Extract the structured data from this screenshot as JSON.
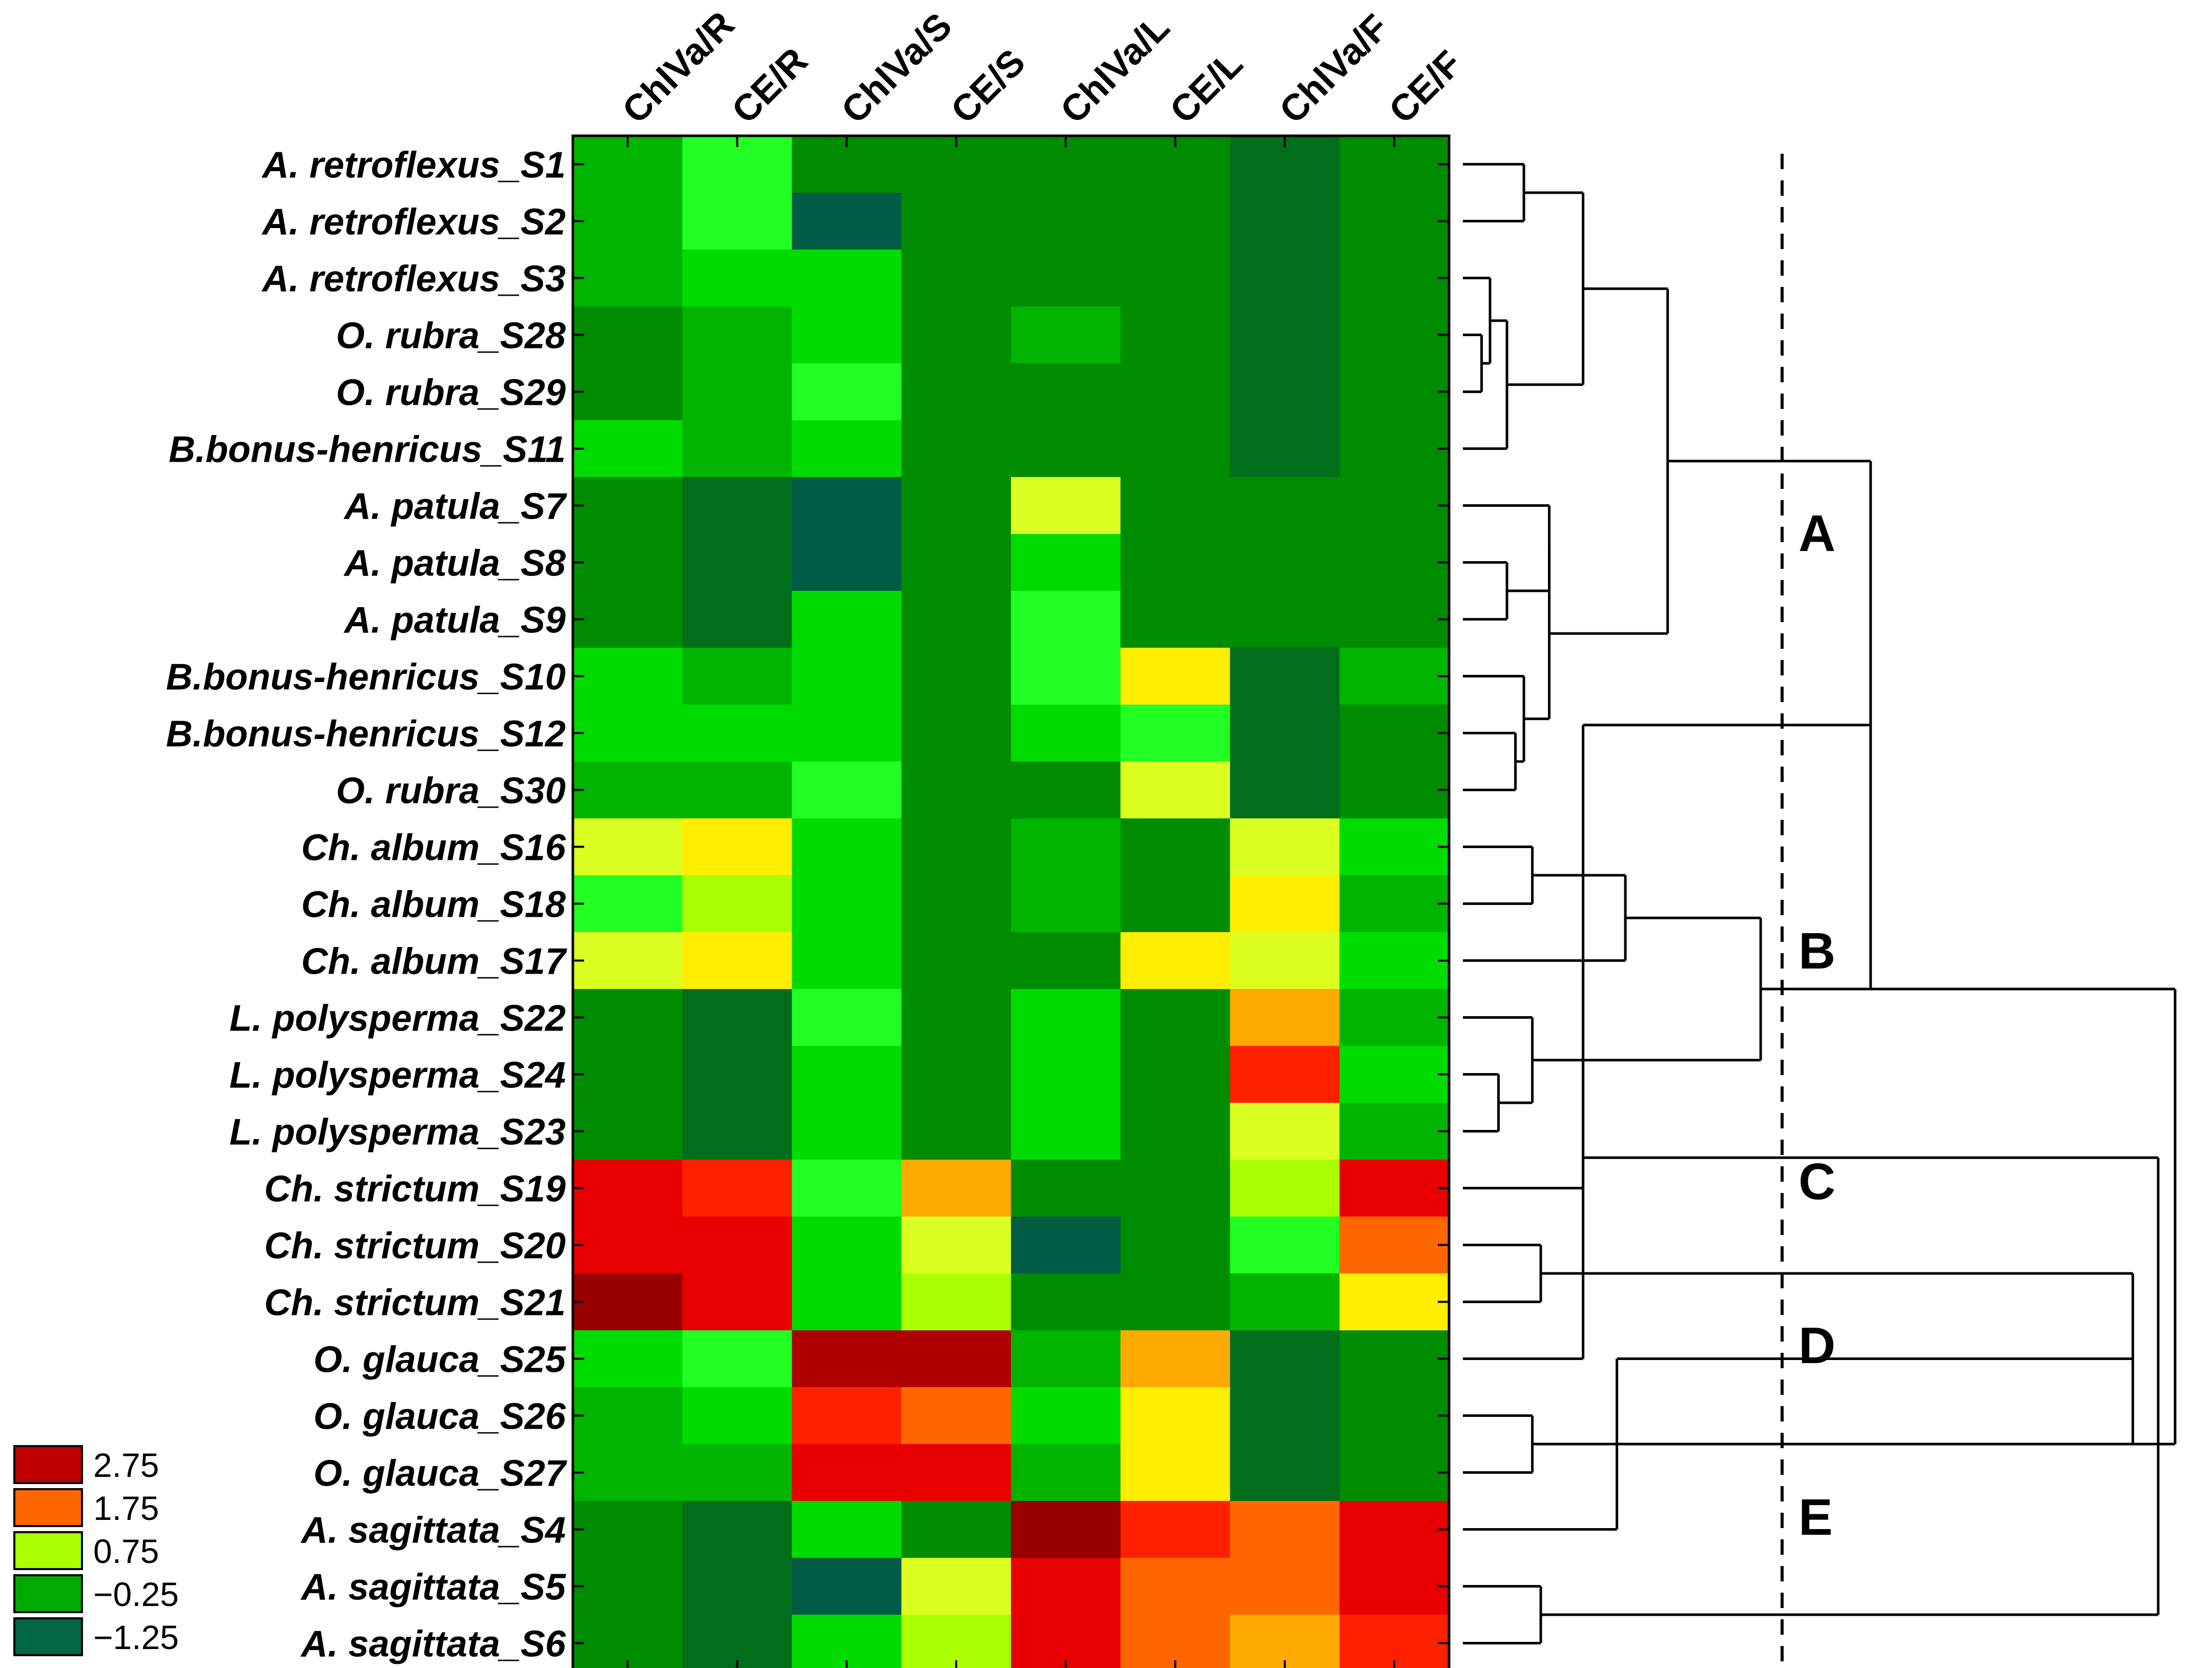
{
  "chart_data": {
    "type": "heatmap",
    "title": "",
    "columns": [
      "ChlVa/R",
      "CE/R",
      "ChlVa/S",
      "CE/S",
      "ChlVa/L",
      "CE/L",
      "ChlVa/F",
      "CE/F"
    ],
    "rows": [
      {
        "name": "A. retroflexus_S1",
        "values": [
          -0.3,
          0.5,
          -0.6,
          -0.6,
          -0.6,
          -0.6,
          -0.9,
          -0.6
        ]
      },
      {
        "name": "A. retroflexus_S2",
        "values": [
          -0.3,
          0.5,
          -1.25,
          -0.6,
          -0.6,
          -0.6,
          -0.9,
          -0.6
        ]
      },
      {
        "name": "A. retroflexus_S3",
        "values": [
          -0.3,
          0.0,
          0.0,
          -0.6,
          -0.6,
          -0.6,
          -0.9,
          -0.6
        ]
      },
      {
        "name": "O. rubra_S28",
        "values": [
          -0.6,
          -0.25,
          0.0,
          -0.6,
          -0.25,
          -0.6,
          -0.9,
          -0.6
        ]
      },
      {
        "name": "O. rubra_S29",
        "values": [
          -0.6,
          -0.25,
          0.5,
          -0.6,
          -0.6,
          -0.6,
          -0.9,
          -0.6
        ]
      },
      {
        "name": "B.bonus-henricus_S11",
        "values": [
          0.0,
          -0.25,
          0.0,
          -0.6,
          -0.6,
          -0.6,
          -0.9,
          -0.6
        ]
      },
      {
        "name": "A. patula_S7",
        "values": [
          -0.6,
          -0.9,
          -1.25,
          -0.6,
          1.2,
          -0.6,
          -0.6,
          -0.6
        ]
      },
      {
        "name": "A. patula_S8",
        "values": [
          -0.6,
          -0.9,
          -1.25,
          -0.6,
          0.0,
          -0.6,
          -0.6,
          -0.6
        ]
      },
      {
        "name": "A. patula_S9",
        "values": [
          -0.6,
          -0.9,
          0.0,
          -0.6,
          0.5,
          -0.6,
          -0.6,
          -0.6
        ]
      },
      {
        "name": "B.bonus-henricus_S10",
        "values": [
          0.0,
          -0.25,
          0.0,
          -0.6,
          0.5,
          1.5,
          -0.9,
          -0.25
        ]
      },
      {
        "name": "B.bonus-henricus_S12",
        "values": [
          0.0,
          0.0,
          0.0,
          -0.6,
          0.0,
          0.5,
          -0.9,
          -0.6
        ]
      },
      {
        "name": "O. rubra_S30",
        "values": [
          -0.25,
          -0.25,
          0.5,
          -0.6,
          -0.6,
          1.0,
          -0.9,
          -0.6
        ]
      },
      {
        "name": "Ch. album_S16",
        "values": [
          1.1,
          1.5,
          0.0,
          -0.6,
          -0.25,
          -0.6,
          1.1,
          0.0
        ]
      },
      {
        "name": "Ch. album_S18",
        "values": [
          0.5,
          0.8,
          0.0,
          -0.6,
          -0.25,
          -0.6,
          1.5,
          -0.25
        ]
      },
      {
        "name": "Ch. album_S17",
        "values": [
          1.1,
          1.5,
          0.0,
          -0.6,
          -0.6,
          1.5,
          1.1,
          0.0
        ]
      },
      {
        "name": "L. polysperma_S22",
        "values": [
          -0.6,
          -0.9,
          0.5,
          -0.6,
          0.0,
          -0.6,
          2.0,
          -0.25
        ]
      },
      {
        "name": "L. polysperma_S24",
        "values": [
          -0.6,
          -0.9,
          0.0,
          -0.6,
          0.0,
          -0.6,
          3.0,
          0.0
        ]
      },
      {
        "name": "L. polysperma_S23",
        "values": [
          -0.6,
          -0.9,
          0.0,
          -0.6,
          0.0,
          -0.6,
          1.1,
          -0.25
        ]
      },
      {
        "name": "Ch. strictum_S19",
        "values": [
          3.2,
          3.0,
          0.5,
          2.0,
          -0.6,
          -0.6,
          0.8,
          3.2
        ]
      },
      {
        "name": "Ch. strictum_S20",
        "values": [
          3.2,
          3.2,
          0.0,
          1.1,
          -1.25,
          -0.6,
          0.5,
          2.3
        ]
      },
      {
        "name": "Ch. strictum_S21",
        "values": [
          4.2,
          3.2,
          0.0,
          0.8,
          -0.6,
          -0.6,
          -0.25,
          1.5
        ]
      },
      {
        "name": "O. glauca_S25",
        "values": [
          0.0,
          0.5,
          4.0,
          4.0,
          -0.25,
          2.0,
          -0.9,
          -0.6
        ]
      },
      {
        "name": "O. glauca_S26",
        "values": [
          -0.25,
          0.0,
          3.0,
          2.3,
          0.0,
          1.5,
          -0.9,
          -0.6
        ]
      },
      {
        "name": "O. glauca_S27",
        "values": [
          -0.25,
          -0.25,
          3.2,
          3.2,
          -0.25,
          1.5,
          -0.9,
          -0.6
        ]
      },
      {
        "name": "A. sagittata_S4",
        "values": [
          -0.6,
          -0.9,
          0.0,
          -0.6,
          4.2,
          3.0,
          2.3,
          3.2
        ]
      },
      {
        "name": "A. sagittata_S5",
        "values": [
          -0.6,
          -0.9,
          -1.25,
          1.1,
          3.3,
          2.3,
          2.3,
          3.2
        ]
      },
      {
        "name": "A. sagittata_S6",
        "values": [
          -0.6,
          -0.9,
          0.0,
          0.8,
          3.3,
          2.3,
          2.0,
          3.0
        ]
      }
    ],
    "legend": {
      "placement": "bottom-left",
      "entries": [
        {
          "label": "2.75",
          "value": 2.75,
          "color": "#c00000"
        },
        {
          "label": "1.75",
          "value": 1.75,
          "color": "#ff6600"
        },
        {
          "label": "0.75",
          "value": 0.75,
          "color": "#aaff00"
        },
        {
          "label": "−0.25",
          "value": -0.25,
          "color": "#00aa00"
        },
        {
          "label": "−1.25",
          "value": -1.25,
          "color": "#006644"
        }
      ]
    },
    "colorscale": [
      {
        "value": -1.25,
        "color": "#005c44"
      },
      {
        "value": -0.9,
        "color": "#006d1a"
      },
      {
        "value": -0.6,
        "color": "#008c00"
      },
      {
        "value": -0.25,
        "color": "#00b400"
      },
      {
        "value": 0.0,
        "color": "#00dc00"
      },
      {
        "value": 0.5,
        "color": "#22ff22"
      },
      {
        "value": 0.8,
        "color": "#aaff00"
      },
      {
        "value": 1.1,
        "color": "#dcff22"
      },
      {
        "value": 1.5,
        "color": "#ffee00"
      },
      {
        "value": 2.0,
        "color": "#ffaa00"
      },
      {
        "value": 2.3,
        "color": "#ff6600"
      },
      {
        "value": 3.0,
        "color": "#ff2000"
      },
      {
        "value": 3.2,
        "color": "#e80000"
      },
      {
        "value": 4.0,
        "color": "#b00000"
      },
      {
        "value": 4.2,
        "color": "#990000"
      }
    ],
    "clusters": [
      "A",
      "B",
      "C",
      "D",
      "E"
    ],
    "dendrogram": {
      "order": [
        "A. retroflexus_S1",
        "A. retroflexus_S2",
        "A. retroflexus_S3",
        "O. rubra_S28",
        "O. rubra_S29",
        "B.bonus-henricus_S11",
        "A. patula_S7",
        "A. patula_S8",
        "A. patula_S9",
        "B.bonus-henricus_S10",
        "B.bonus-henricus_S12",
        "O. rubra_S30",
        "Ch. album_S16",
        "Ch. album_S18",
        "Ch. album_S17",
        "L. polysperma_S22",
        "L. polysperma_S24",
        "L. polysperma_S23",
        "Ch. strictum_S19",
        "Ch. strictum_S20",
        "Ch. strictum_S21",
        "O. glauca_S25",
        "O. glauca_S26",
        "O. glauca_S27",
        "A. sagittata_S4",
        "A. sagittata_S5",
        "A. sagittata_S6"
      ],
      "cut": 0.42,
      "merges": [
        {
          "a": 0,
          "b": 1,
          "h": 0.06
        },
        {
          "a": 3,
          "b": 4,
          "h": 0.01
        },
        {
          "a": 2,
          "b": 28,
          "h": 0.02
        },
        {
          "a": 29,
          "b": 5,
          "h": 0.04
        },
        {
          "a": 27,
          "b": 30,
          "h": 0.13
        },
        {
          "a": 7,
          "b": 8,
          "h": 0.04
        },
        {
          "a": 6,
          "b": 32,
          "h": 0.09
        },
        {
          "a": 10,
          "b": 11,
          "h": 0.05
        },
        {
          "a": 9,
          "b": 34,
          "h": 0.06
        },
        {
          "a": 33,
          "b": 35,
          "h": 0.09
        },
        {
          "a": 31,
          "b": 36,
          "h": 0.23
        },
        {
          "a": 12,
          "b": 13,
          "h": 0.07
        },
        {
          "a": 38,
          "b": 14,
          "h": 0.18
        },
        {
          "a": 16,
          "b": 17,
          "h": 0.03
        },
        {
          "a": 15,
          "b": 40,
          "h": 0.07
        },
        {
          "a": 39,
          "b": 41,
          "h": 0.34
        },
        {
          "a": 37,
          "b": 42,
          "h": 0.47
        },
        {
          "a": 19,
          "b": 20,
          "h": 0.08
        },
        {
          "a": 18,
          "b": 43,
          "h": 0.13
        },
        {
          "a": 22,
          "b": 23,
          "h": 0.07
        },
        {
          "a": 21,
          "b": 45,
          "h": 0.13
        },
        {
          "a": 44,
          "b": 46,
          "h": 0.78
        },
        {
          "a": 25,
          "b": 26,
          "h": 0.08
        },
        {
          "a": 24,
          "b": 48,
          "h": 0.17
        },
        {
          "a": 47,
          "b": 49,
          "h": 0.81
        },
        {
          "a": 42,
          "b": 50,
          "h": 0.83
        },
        {
          "a": 51,
          "b": 50,
          "h": 0.0
        }
      ]
    }
  }
}
